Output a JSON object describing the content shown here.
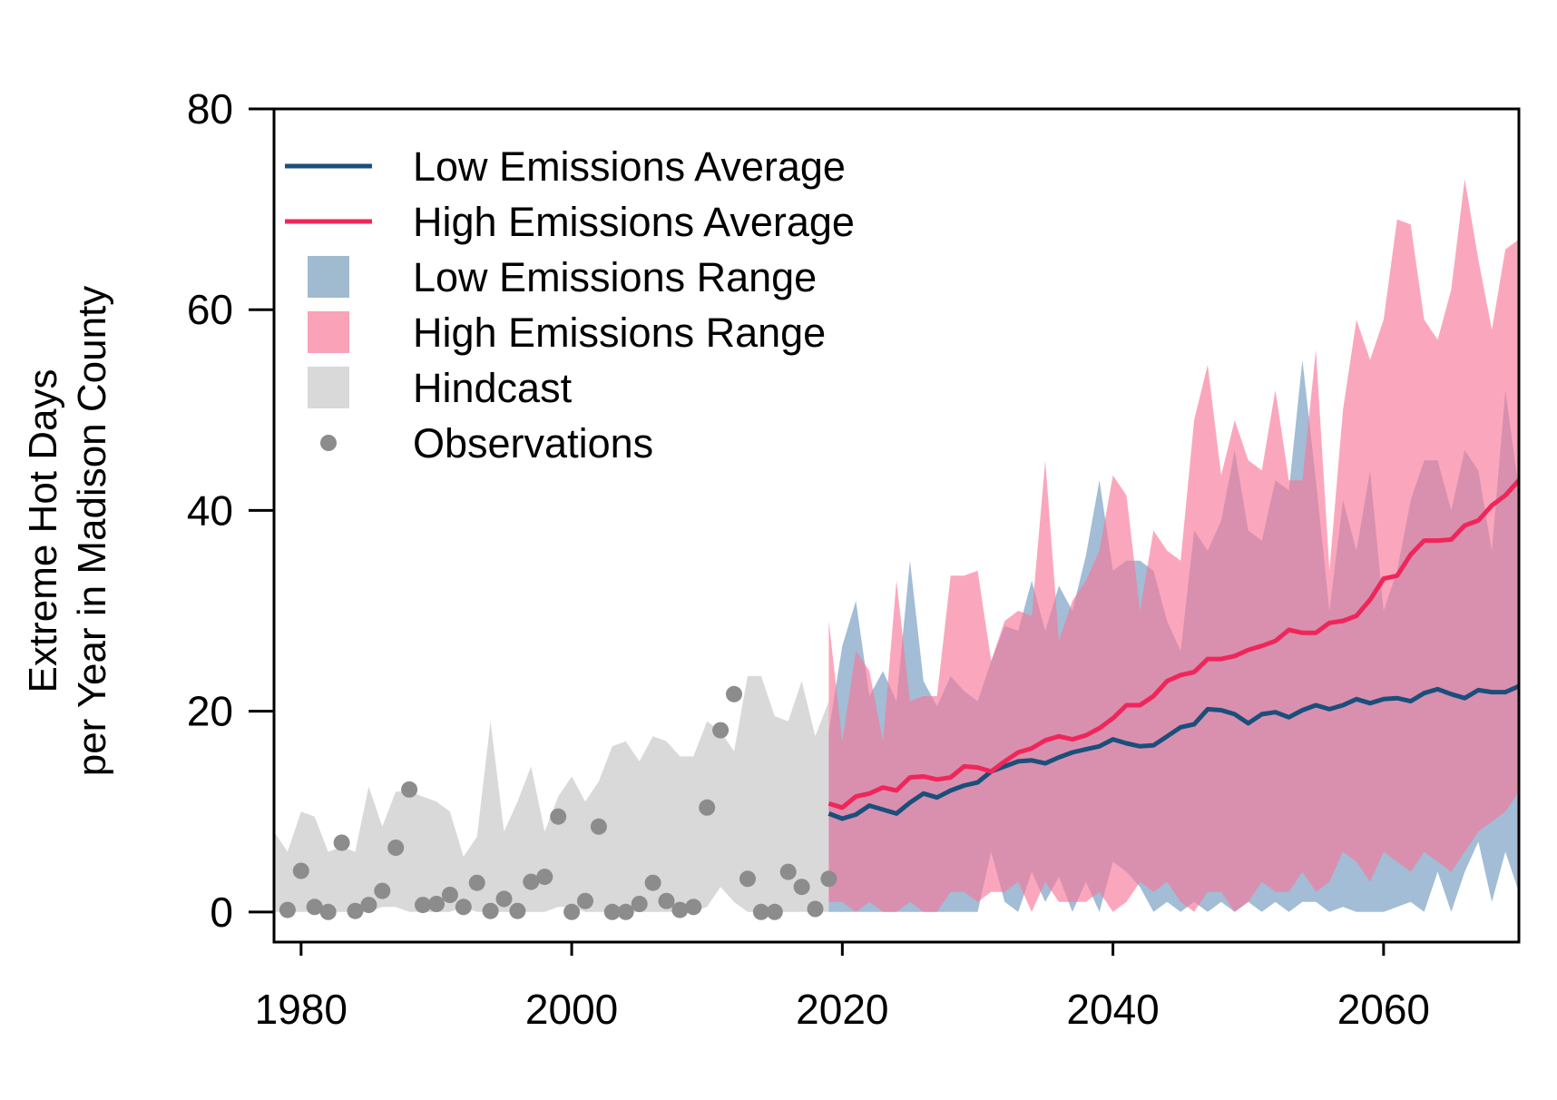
{
  "chart_data": {
    "type": "area",
    "ylabel_lines": [
      "Extreme Hot Days",
      "per Year in Madison County"
    ],
    "xlim": [
      1978,
      2070
    ],
    "ylim": [
      -3,
      80
    ],
    "x_ticks": [
      1980,
      2000,
      2020,
      2040,
      2060
    ],
    "y_ticks": [
      0,
      20,
      40,
      60,
      80
    ],
    "x_tick_labels": [
      "1980",
      "2000",
      "2020",
      "2040",
      "2060"
    ],
    "y_tick_labels": [
      "0",
      "20",
      "40",
      "60",
      "80"
    ],
    "legend_position": "top-left",
    "legend": [
      {
        "label": "Low Emissions Average",
        "kind": "line",
        "color": "#1a4f7c"
      },
      {
        "label": "High Emissions Average",
        "kind": "line",
        "color": "#f0265a"
      },
      {
        "label": "Low Emissions Range",
        "kind": "fill",
        "color": "#a0bad0"
      },
      {
        "label": "High Emissions Range",
        "kind": "fill",
        "color": "#f9a2b8"
      },
      {
        "label": "Hindcast",
        "kind": "fill",
        "color": "#d9d9d9"
      },
      {
        "label": "Observations",
        "kind": "point",
        "color": "#8c8c8c"
      }
    ],
    "colors": {
      "low_line": "#1a4f7c",
      "high_line": "#f0265a",
      "low_range": "rgba(112,154,190,0.65)",
      "high_range": "rgba(247,120,153,0.65)",
      "hindcast": "#d9d9d9",
      "observations": "#8c8c8c"
    },
    "hindcast": {
      "x": [
        1978,
        1979,
        1980,
        1981,
        1982,
        1983,
        1984,
        1985,
        1986,
        1987,
        1988,
        1989,
        1990,
        1991,
        1992,
        1993,
        1994,
        1995,
        1996,
        1997,
        1998,
        1999,
        2000,
        2001,
        2002,
        2003,
        2004,
        2005,
        2006,
        2007,
        2008,
        2009,
        2010,
        2011,
        2012,
        2013,
        2014,
        2015,
        2016,
        2017,
        2018,
        2019
      ],
      "upper": [
        8,
        6,
        10,
        9.5,
        6,
        6.5,
        6,
        12.5,
        8.5,
        12,
        12,
        11.5,
        11,
        10,
        5.5,
        7.5,
        19,
        8,
        11,
        14.5,
        8,
        11.5,
        13.5,
        11,
        13,
        16.5,
        17,
        15,
        17.5,
        17,
        15.5,
        15.5,
        19,
        18,
        16,
        23.5,
        23.5,
        19.5,
        19,
        23,
        17.5,
        21
      ],
      "lower": [
        0,
        0,
        0,
        0,
        0,
        0,
        0,
        0,
        0.5,
        0.5,
        0,
        0,
        0,
        0,
        0.5,
        0,
        0,
        0,
        0,
        0,
        0,
        0.5,
        0.5,
        0,
        0,
        0,
        0,
        0,
        0,
        0,
        0,
        0,
        0.5,
        2.5,
        1,
        0,
        0,
        0,
        0,
        0,
        0,
        0
      ]
    },
    "observations": {
      "x": [
        1979,
        1980,
        1981,
        1982,
        1983,
        1984,
        1985,
        1986,
        1987,
        1988,
        1989,
        1990,
        1991,
        1992,
        1993,
        1994,
        1995,
        1996,
        1997,
        1998,
        1999,
        2000,
        2001,
        2002,
        2003,
        2004,
        2005,
        2006,
        2007,
        2008,
        2009,
        2010,
        2011,
        2012,
        2013,
        2014,
        2015,
        2016,
        2017,
        2018,
        2019
      ],
      "y": [
        0.2,
        4.1,
        0.5,
        0,
        6.9,
        0.1,
        0.7,
        2.1,
        6.4,
        12.2,
        0.7,
        0.8,
        1.7,
        0.5,
        2.9,
        0.1,
        1.3,
        0.1,
        3,
        3.5,
        9.5,
        0,
        1.1,
        8.5,
        0,
        0,
        0.8,
        2.9,
        1.1,
        0.2,
        0.5,
        10.4,
        18.1,
        21.7,
        3.3,
        0,
        0,
        4,
        2.5,
        0.3,
        3.3
      ]
    },
    "low_emissions": {
      "x": [
        2019,
        2020,
        2021,
        2022,
        2023,
        2024,
        2025,
        2026,
        2027,
        2028,
        2029,
        2030,
        2031,
        2032,
        2033,
        2034,
        2035,
        2036,
        2037,
        2038,
        2039,
        2040,
        2041,
        2042,
        2043,
        2044,
        2045,
        2046,
        2047,
        2048,
        2049,
        2050,
        2051,
        2052,
        2053,
        2054,
        2055,
        2056,
        2057,
        2058,
        2059,
        2060,
        2061,
        2062,
        2063,
        2064,
        2065,
        2066,
        2067,
        2068,
        2069,
        2070
      ],
      "average": [
        9.8,
        9.3,
        9.7,
        10.6,
        10.2,
        9.8,
        10.9,
        11.8,
        11.4,
        12.1,
        12.6,
        12.9,
        14,
        14.5,
        15,
        15.1,
        14.8,
        15.4,
        15.9,
        16.2,
        16.5,
        17.2,
        16.8,
        16.5,
        16.6,
        17.5,
        18.4,
        18.7,
        20.2,
        20.1,
        19.7,
        18.8,
        19.7,
        19.9,
        19.4,
        20.1,
        20.6,
        20.2,
        20.6,
        21.2,
        20.8,
        21.2,
        21.3,
        21,
        21.8,
        22.2,
        21.7,
        21.3,
        22.1,
        21.9,
        21.9,
        22.5
      ],
      "upper": [
        18,
        26.5,
        31,
        21.5,
        24,
        21,
        35,
        23,
        20.5,
        23.5,
        22,
        21,
        25,
        28.5,
        28,
        33,
        28,
        32.5,
        30,
        35.5,
        43,
        34,
        35,
        35,
        34,
        29,
        26,
        38,
        36,
        39,
        46,
        38,
        37,
        43,
        42,
        55,
        43,
        30,
        41,
        36,
        44,
        30,
        34,
        41,
        45,
        45,
        40,
        46,
        44,
        36,
        52,
        42
      ],
      "lower": [
        0,
        0,
        0,
        0,
        0,
        0,
        0,
        0,
        0,
        0,
        0,
        0,
        6,
        1,
        0,
        4,
        1,
        3.5,
        0,
        3,
        0,
        5,
        4,
        2.5,
        0,
        1,
        0,
        1,
        0,
        1,
        0,
        1,
        0,
        1,
        0,
        1,
        1,
        0,
        0.5,
        0,
        0,
        0,
        0.5,
        1,
        0,
        4,
        0,
        4,
        7,
        1,
        6,
        2
      ]
    },
    "high_emissions": {
      "x": [
        2019,
        2020,
        2021,
        2022,
        2023,
        2024,
        2025,
        2026,
        2027,
        2028,
        2029,
        2030,
        2031,
        2032,
        2033,
        2034,
        2035,
        2036,
        2037,
        2038,
        2039,
        2040,
        2041,
        2042,
        2043,
        2044,
        2045,
        2046,
        2047,
        2048,
        2049,
        2050,
        2051,
        2052,
        2053,
        2054,
        2055,
        2056,
        2057,
        2058,
        2059,
        2060,
        2061,
        2062,
        2063,
        2064,
        2065,
        2066,
        2067,
        2068,
        2069,
        2070
      ],
      "average": [
        10.8,
        10.4,
        11.5,
        11.8,
        12.4,
        12.1,
        13.4,
        13.5,
        13.2,
        13.4,
        14.5,
        14.4,
        14,
        15,
        15.9,
        16.3,
        17.1,
        17.5,
        17.2,
        17.6,
        18.3,
        19.3,
        20.6,
        20.6,
        21.5,
        23,
        23.6,
        23.9,
        25.2,
        25.2,
        25.5,
        26.1,
        26.5,
        27,
        28.1,
        27.8,
        27.8,
        28.8,
        29,
        29.5,
        31.1,
        33.2,
        33.5,
        35.6,
        37,
        37,
        37.1,
        38.5,
        39,
        40.5,
        41.5,
        43
      ],
      "upper": [
        29,
        17,
        26,
        24,
        17,
        33,
        21,
        21.5,
        21.5,
        33.5,
        33.5,
        34,
        25,
        29,
        30,
        29.5,
        45,
        27,
        31,
        33,
        36,
        43.5,
        41.5,
        30,
        38,
        36,
        35,
        49,
        54.5,
        43.5,
        49,
        45,
        44,
        52,
        43,
        43,
        56,
        34,
        50,
        59,
        55,
        59,
        69,
        68.5,
        59,
        57,
        62,
        73,
        65,
        58,
        66,
        67
      ],
      "lower": [
        1,
        1,
        0,
        1,
        0,
        0,
        1,
        0,
        0,
        2,
        2,
        1,
        2,
        2,
        3,
        0,
        3,
        1,
        1,
        1,
        2,
        0,
        1,
        3,
        2,
        3,
        1,
        0,
        2,
        2,
        0,
        1,
        3,
        2,
        2,
        4,
        2,
        3,
        6,
        5,
        3,
        6,
        5,
        4,
        6,
        5,
        4,
        6,
        8,
        9,
        10,
        12
      ]
    }
  }
}
